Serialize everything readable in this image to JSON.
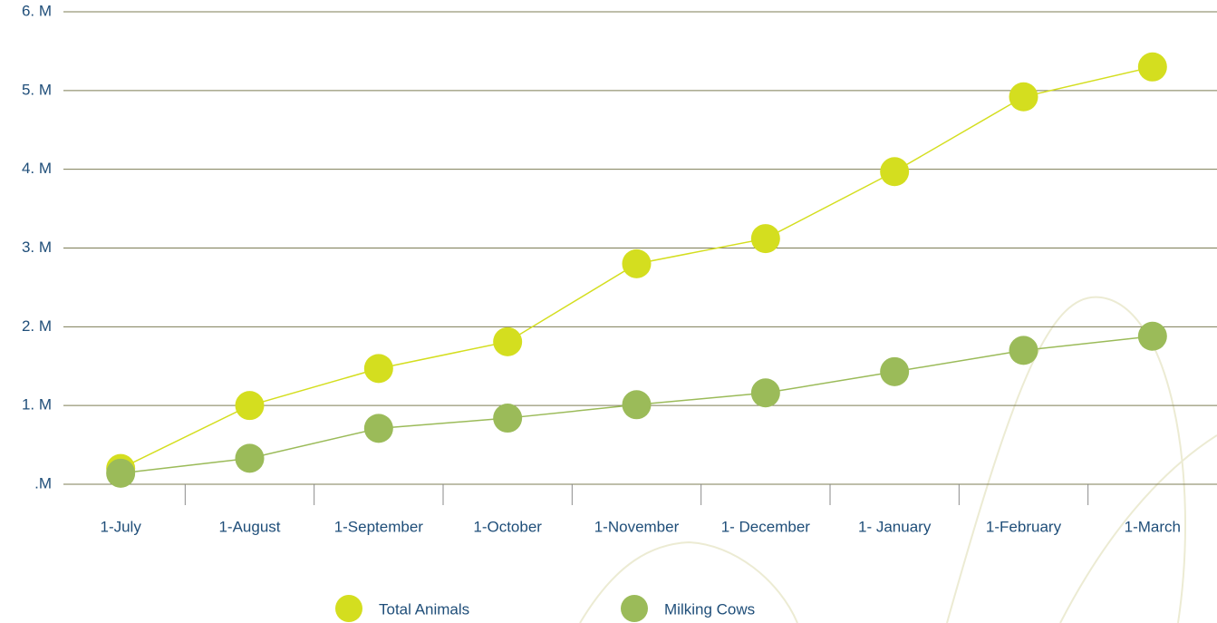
{
  "chart_data": {
    "type": "line",
    "categories": [
      "1-July",
      "1-August",
      "1-September",
      "1-October",
      "1-November",
      "1- December",
      "1- January",
      "1-February",
      "1-March"
    ],
    "series": [
      {
        "name": "Total Animals",
        "color": "#d4de1f",
        "values": [
          200000,
          1000000,
          1470000,
          1810000,
          2800000,
          3120000,
          3970000,
          4920000,
          5300000
        ]
      },
      {
        "name": "Milking Cows",
        "color": "#9bbb59",
        "values": [
          140000,
          330000,
          710000,
          840000,
          1010000,
          1160000,
          1430000,
          1700000,
          1880000
        ]
      }
    ],
    "ylim": [
      0,
      6000000
    ],
    "yticks": [
      {
        "value": 0,
        "label": ".M"
      },
      {
        "value": 1000000,
        "label": "1. M"
      },
      {
        "value": 2000000,
        "label": "2. M"
      },
      {
        "value": 3000000,
        "label": "3. M"
      },
      {
        "value": 4000000,
        "label": "4. M"
      },
      {
        "value": 5000000,
        "label": "5. M"
      },
      {
        "value": 6000000,
        "label": "6. M"
      }
    ],
    "grid": true,
    "legend": "bottom"
  }
}
